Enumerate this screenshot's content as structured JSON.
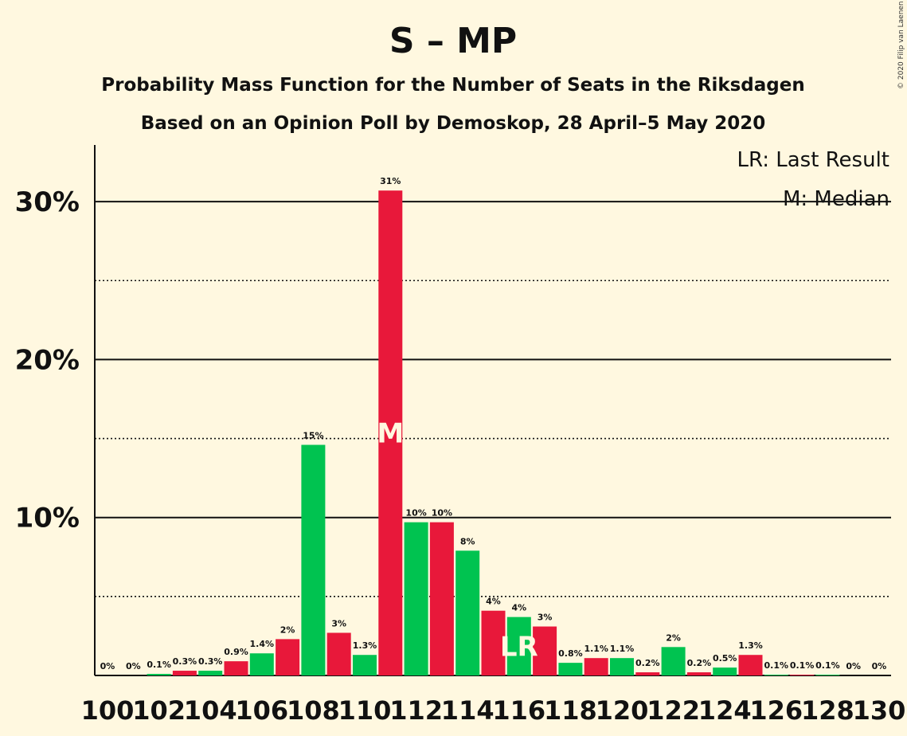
{
  "chart_data": {
    "type": "bar",
    "title": "S – MP",
    "subtitle_line1": "Probability Mass Function for the Number of Seats in the Riksdagen",
    "subtitle_line2": "Based on an Opinion Poll by Demoskop, 28 April–5 May 2020",
    "copyright": "© 2020 Filip van Laenen",
    "legend": {
      "last_result": "LR: Last Result",
      "median": "M: Median",
      "placement": "top-right"
    },
    "categories": [
      100,
      101,
      102,
      103,
      104,
      105,
      106,
      107,
      108,
      109,
      110,
      111,
      112,
      113,
      114,
      115,
      116,
      117,
      118,
      119,
      120,
      121,
      122,
      123,
      124,
      125,
      126,
      127,
      128,
      129,
      130
    ],
    "x_tick_labels": [
      "100",
      "102",
      "104",
      "106",
      "108",
      "110",
      "112",
      "114",
      "116",
      "118",
      "120",
      "122",
      "124",
      "126",
      "128",
      "130"
    ],
    "values": [
      0,
      0,
      0.1,
      0.3,
      0.3,
      0.9,
      1.4,
      2.3,
      14.6,
      2.7,
      1.3,
      30.7,
      9.7,
      9.7,
      7.9,
      4.1,
      3.7,
      3.1,
      0.8,
      1.1,
      1.1,
      0.2,
      1.8,
      0.2,
      0.5,
      1.3,
      0.05,
      0.05,
      0.05,
      0,
      0
    ],
    "data_labels": [
      "0%",
      "0%",
      "0.1%",
      "0.3%",
      "0.3%",
      "0.9%",
      "1.4%",
      "2%",
      "15%",
      "3%",
      "1.3%",
      "31%",
      "10%",
      "10%",
      "8%",
      "4%",
      "4%",
      "3%",
      "0.8%",
      "1.1%",
      "1.1%",
      "0.2%",
      "2%",
      "0.2%",
      "0.5%",
      "1.3%",
      "0.1%",
      "0.1%",
      "0.1%",
      "0%",
      "0%"
    ],
    "bar_colors": [
      "#00c350",
      "#e8183a"
    ],
    "median_seat": 111,
    "median_marker": "M",
    "last_result_seat": 116,
    "last_result_marker": "LR",
    "y_ticks": [
      10,
      20,
      30
    ],
    "y_tick_labels": [
      "10%",
      "20%",
      "30%"
    ],
    "y_minor_ticks": [
      5,
      15,
      25
    ],
    "ylim": [
      0,
      33.6
    ],
    "grid": true
  }
}
